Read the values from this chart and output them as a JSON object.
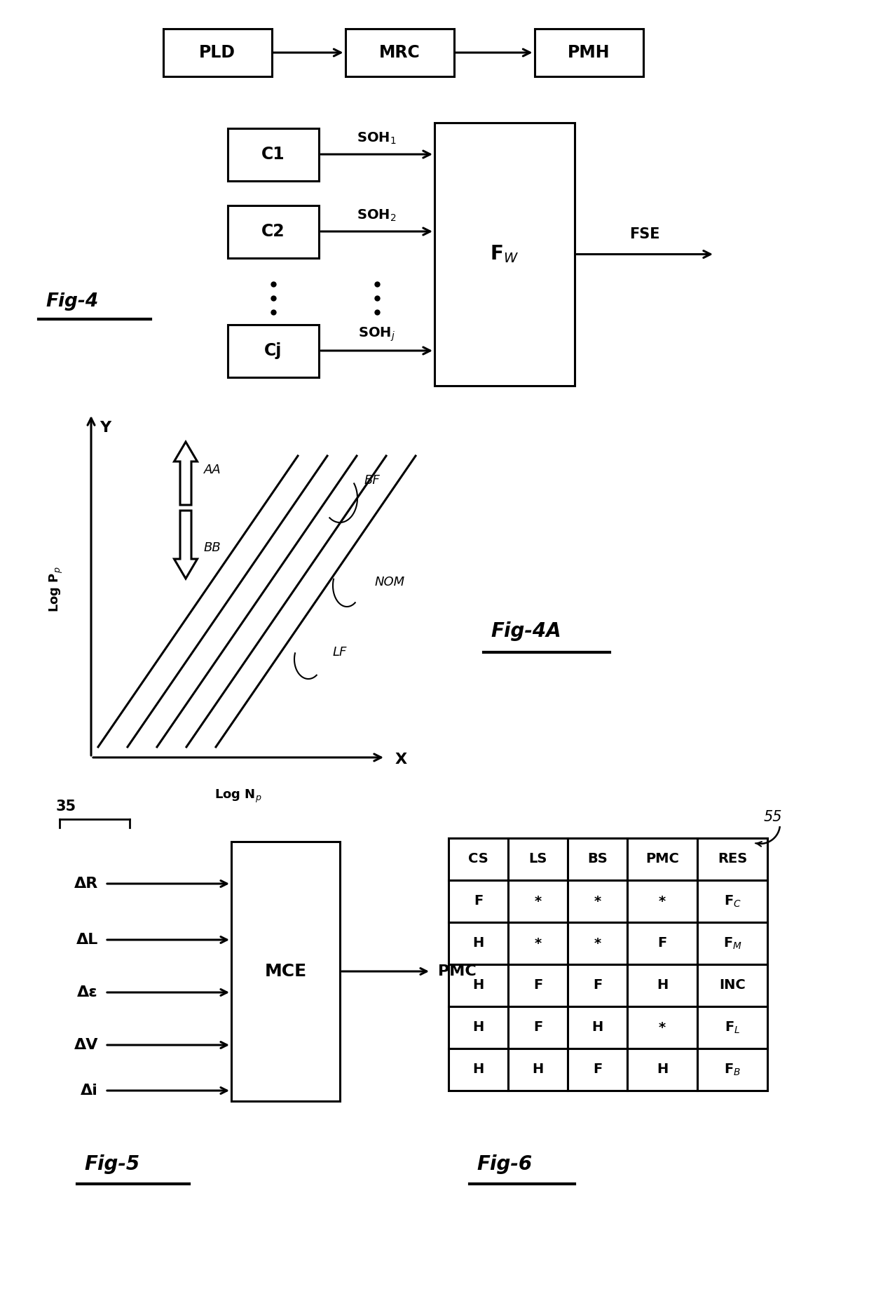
{
  "bg_color": "#ffffff",
  "fig_width": 12.4,
  "fig_height": 18.55,
  "fig4_label": "Fig-4",
  "fig4a_label": "Fig-4A",
  "fig5_label": "Fig-5",
  "fig6_label": "Fig-6",
  "top_boxes": [
    "PLD",
    "MRC",
    "PMH"
  ],
  "c_boxes": [
    "C1",
    "C2",
    "Cj"
  ],
  "soh_labels": [
    "SOH$_1$",
    "SOH$_2$",
    "SOH$_j$"
  ],
  "fw_label": "F$_W$",
  "fse_label": "FSE",
  "graph_xlabel": "Log N$_p$",
  "graph_ylabel": "Log P$_p$",
  "graph_x_axis": "X",
  "graph_y_axis": "Y",
  "graph_bf_label": "BF",
  "graph_nom_label": "NOM",
  "graph_lf_label": "LF",
  "graph_aa_label": "AA",
  "graph_bb_label": "BB",
  "fig5_inputs": [
    "ΔR",
    "ΔL",
    "Δε",
    "ΔV",
    "Δi"
  ],
  "fig5_box_label": "MCE",
  "fig5_output": "PMC",
  "fig5_brace_label": "35",
  "fig6_brace_label": "55",
  "fig6_headers": [
    "CS",
    "LS",
    "BS",
    "PMC",
    "RES"
  ],
  "fig6_rows": [
    [
      "F",
      "*",
      "*",
      "*",
      "F$_C$"
    ],
    [
      "H",
      "*",
      "*",
      "F",
      "F$_M$"
    ],
    [
      "H",
      "F",
      "F",
      "H",
      "INC"
    ],
    [
      "H",
      "F",
      "H",
      "*",
      "F$_L$"
    ],
    [
      "H",
      "H",
      "F",
      "H",
      "F$_B$"
    ]
  ]
}
